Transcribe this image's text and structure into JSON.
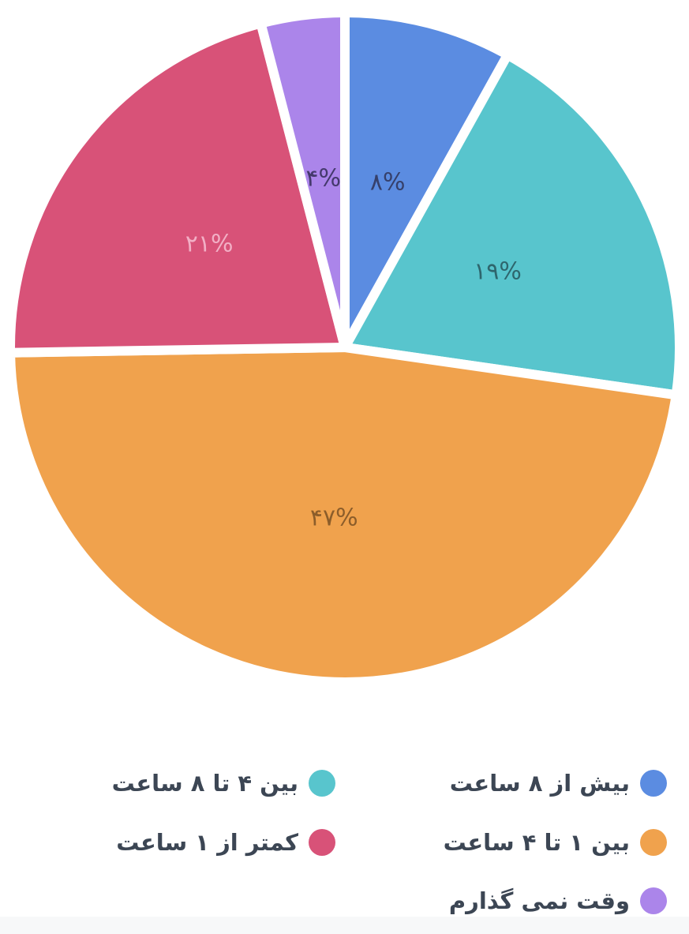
{
  "page": {
    "background": "#FFFFFF",
    "footer_strip_color": "#F7F8F9"
  },
  "chart_data": {
    "type": "pie",
    "title": "",
    "unit": "%",
    "start_angle_deg": 0,
    "direction": "clockwise",
    "gap_color": "#FFFFFF",
    "slices": [
      {
        "label": "بیش از ۸ ساعت",
        "value": 8,
        "display_value": "۸%",
        "color": "#5B8CE1",
        "value_label_color": "#36406B"
      },
      {
        "label": "بین ۴ تا ۸ ساعت",
        "value": 19,
        "display_value": "۱۹%",
        "color": "#58C5CD",
        "value_label_color": "#2E666D"
      },
      {
        "label": "بین ۱ تا ۴ ساعت",
        "value": 47,
        "display_value": "۴۷%",
        "color": "#F0A24D",
        "value_label_color": "#8C5D2A"
      },
      {
        "label": "کمتر از ۱ ساعت",
        "value": 21,
        "display_value": "۲۱%",
        "color": "#D85278",
        "value_label_color": "#F2AFC5"
      },
      {
        "label": "وقت نمی گذارم",
        "value": 4,
        "display_value": "۴%",
        "color": "#AB85EA",
        "value_label_color": "#44396C"
      }
    ],
    "legend": {
      "position": "bottom",
      "text_color": "#3C4654",
      "columns": {
        "right": [
          0,
          2,
          4
        ],
        "left": [
          1,
          3
        ]
      }
    }
  }
}
